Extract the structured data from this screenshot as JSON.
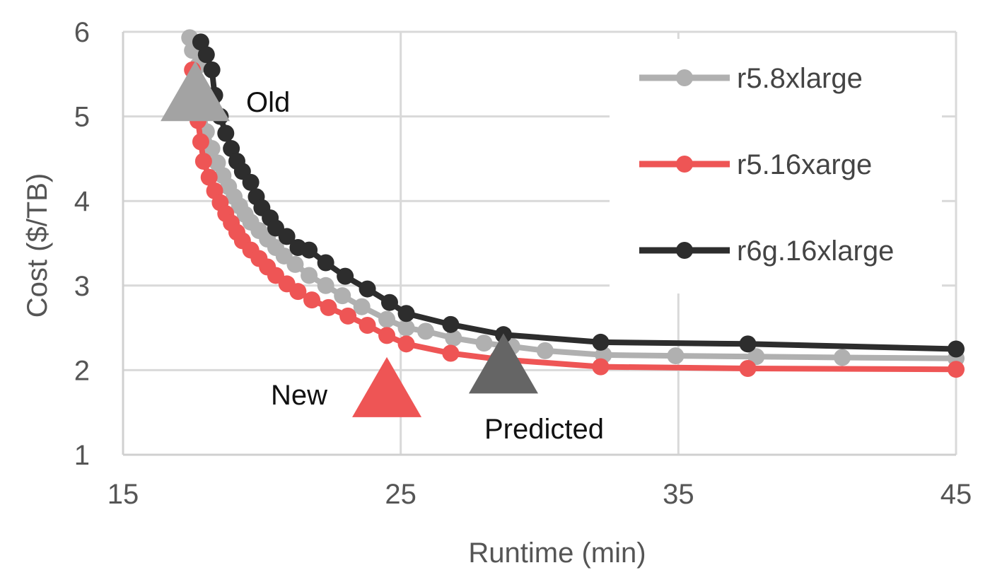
{
  "chart_data": {
    "type": "line",
    "title": "",
    "xlabel": "Runtime (min)",
    "ylabel": "Cost ($/TB)",
    "xlim": [
      15,
      45
    ],
    "ylim": [
      1,
      6
    ],
    "xticks": [
      15,
      25,
      35,
      45
    ],
    "yticks": [
      1,
      2,
      3,
      4,
      5,
      6
    ],
    "grid": true,
    "legend_position": "top-right",
    "series": [
      {
        "name": "r5.8xlarge",
        "color": "#b0b0b0",
        "points": [
          [
            17.4,
            5.93
          ],
          [
            17.5,
            5.78
          ],
          [
            17.7,
            5.6
          ],
          [
            17.8,
            5.3
          ],
          [
            17.9,
            5.05
          ],
          [
            18.0,
            4.82
          ],
          [
            18.2,
            4.62
          ],
          [
            18.4,
            4.45
          ],
          [
            18.6,
            4.3
          ],
          [
            18.8,
            4.17
          ],
          [
            19.0,
            4.05
          ],
          [
            19.2,
            3.94
          ],
          [
            19.4,
            3.84
          ],
          [
            19.6,
            3.75
          ],
          [
            19.9,
            3.65
          ],
          [
            20.2,
            3.55
          ],
          [
            20.5,
            3.45
          ],
          [
            20.8,
            3.35
          ],
          [
            21.2,
            3.25
          ],
          [
            21.7,
            3.12
          ],
          [
            22.3,
            3.0
          ],
          [
            22.9,
            2.88
          ],
          [
            23.6,
            2.75
          ],
          [
            24.5,
            2.6
          ],
          [
            25.2,
            2.5
          ],
          [
            25.9,
            2.46
          ],
          [
            26.9,
            2.38
          ],
          [
            28.0,
            2.32
          ],
          [
            29.0,
            2.28
          ],
          [
            30.2,
            2.23
          ],
          [
            32.3,
            2.18
          ],
          [
            34.9,
            2.17
          ],
          [
            37.8,
            2.16
          ],
          [
            40.9,
            2.15
          ],
          [
            45.0,
            2.14
          ]
        ]
      },
      {
        "name": "r5.16xarge",
        "color": "#ee5555",
        "points": [
          [
            17.5,
            5.55
          ],
          [
            17.6,
            5.2
          ],
          [
            17.7,
            4.95
          ],
          [
            17.8,
            4.7
          ],
          [
            17.9,
            4.47
          ],
          [
            18.1,
            4.28
          ],
          [
            18.3,
            4.12
          ],
          [
            18.5,
            3.98
          ],
          [
            18.7,
            3.85
          ],
          [
            18.9,
            3.74
          ],
          [
            19.1,
            3.63
          ],
          [
            19.3,
            3.53
          ],
          [
            19.6,
            3.42
          ],
          [
            19.9,
            3.32
          ],
          [
            20.2,
            3.22
          ],
          [
            20.5,
            3.12
          ],
          [
            20.9,
            3.02
          ],
          [
            21.3,
            2.93
          ],
          [
            21.8,
            2.83
          ],
          [
            22.4,
            2.74
          ],
          [
            23.1,
            2.64
          ],
          [
            23.8,
            2.53
          ],
          [
            24.5,
            2.41
          ],
          [
            25.2,
            2.31
          ],
          [
            26.8,
            2.2
          ],
          [
            28.5,
            2.13
          ],
          [
            32.2,
            2.04
          ],
          [
            37.5,
            2.02
          ],
          [
            45.0,
            2.01
          ]
        ]
      },
      {
        "name": "r6g.16xlarge",
        "color": "#2d2d2d",
        "points": [
          [
            17.8,
            5.88
          ],
          [
            18.0,
            5.73
          ],
          [
            18.2,
            5.55
          ],
          [
            18.3,
            5.25
          ],
          [
            18.5,
            5.0
          ],
          [
            18.7,
            4.8
          ],
          [
            18.9,
            4.62
          ],
          [
            19.1,
            4.47
          ],
          [
            19.3,
            4.35
          ],
          [
            19.6,
            4.22
          ],
          [
            19.8,
            4.05
          ],
          [
            20.0,
            3.92
          ],
          [
            20.3,
            3.8
          ],
          [
            20.5,
            3.68
          ],
          [
            20.9,
            3.58
          ],
          [
            21.3,
            3.45
          ],
          [
            21.7,
            3.42
          ],
          [
            22.3,
            3.27
          ],
          [
            23.0,
            3.11
          ],
          [
            23.8,
            2.96
          ],
          [
            24.6,
            2.8
          ],
          [
            25.2,
            2.67
          ],
          [
            26.8,
            2.54
          ],
          [
            28.7,
            2.42
          ],
          [
            32.2,
            2.33
          ],
          [
            37.5,
            2.31
          ],
          [
            45.0,
            2.25
          ]
        ]
      }
    ],
    "annotations": [
      {
        "label": "Old",
        "x": 17.6,
        "y": 5.3,
        "color": "#a3a3a3"
      },
      {
        "label": "New",
        "x": 24.5,
        "y": 1.8,
        "color": "#ee5555"
      },
      {
        "label": "Predicted",
        "x": 28.7,
        "y": 2.08,
        "color": "#656565"
      }
    ]
  }
}
